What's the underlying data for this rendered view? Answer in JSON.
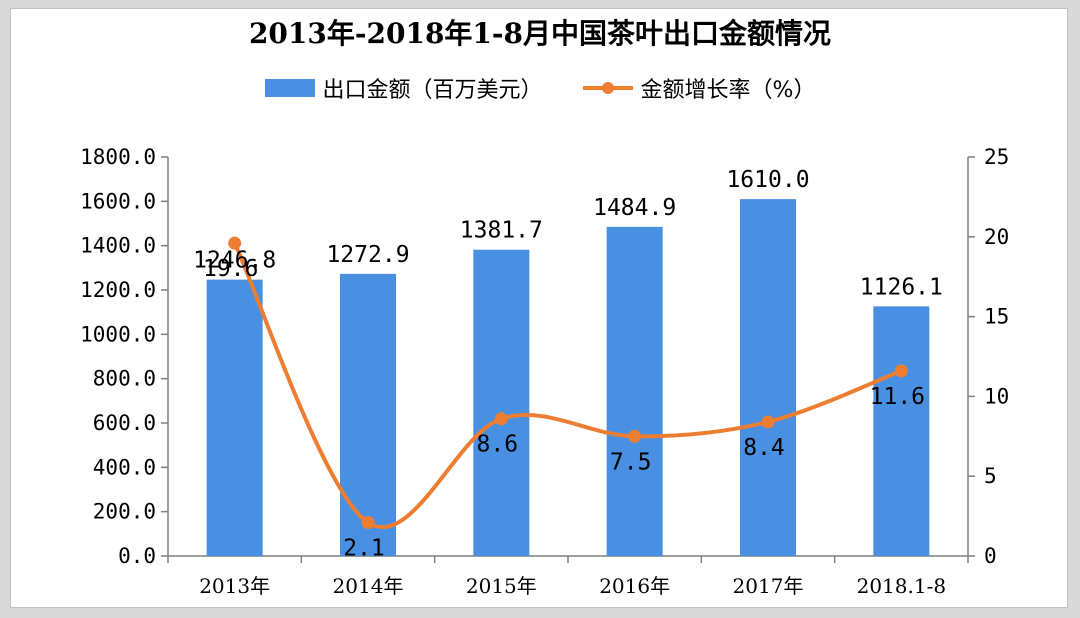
{
  "chart_data": {
    "type": "bar",
    "title": "2013年-2018年1-8月中国茶叶出口金额情况",
    "categories": [
      "2013年",
      "2014年",
      "2015年",
      "2016年",
      "2017年",
      "2018.1-8"
    ],
    "series": [
      {
        "name": "出口金额（百万美元）",
        "type": "bar",
        "axis": "left",
        "color": "#4a90e2",
        "values": [
          1246.8,
          1272.9,
          1381.7,
          1484.9,
          1610.0,
          1126.1
        ],
        "labels": [
          "1246.8",
          "1272.9",
          "1381.7",
          "1484.9",
          "1610.0",
          "1126.1"
        ]
      },
      {
        "name": "金额增长率（%）",
        "type": "line",
        "axis": "right",
        "color": "#ed7d31",
        "values": [
          19.6,
          2.1,
          8.6,
          7.5,
          8.4,
          11.6
        ],
        "labels": [
          "19.6",
          "2.1",
          "8.6",
          "7.5",
          "8.4",
          "11.6"
        ]
      }
    ],
    "y_left": {
      "range": [
        0,
        1800
      ],
      "ticks": [
        0,
        200,
        400,
        600,
        800,
        1000,
        1200,
        1400,
        1600,
        1800
      ],
      "tick_labels": [
        "0.0",
        "200.0",
        "400.0",
        "600.0",
        "800.0",
        "1000.0",
        "1200.0",
        "1400.0",
        "1600.0",
        "1800.0"
      ]
    },
    "y_right": {
      "range": [
        0,
        25
      ],
      "ticks": [
        0,
        5,
        10,
        15,
        20,
        25
      ],
      "tick_labels": [
        "0",
        "5",
        "10",
        "15",
        "20",
        "25"
      ]
    },
    "grid": false,
    "legend_position": "top"
  }
}
